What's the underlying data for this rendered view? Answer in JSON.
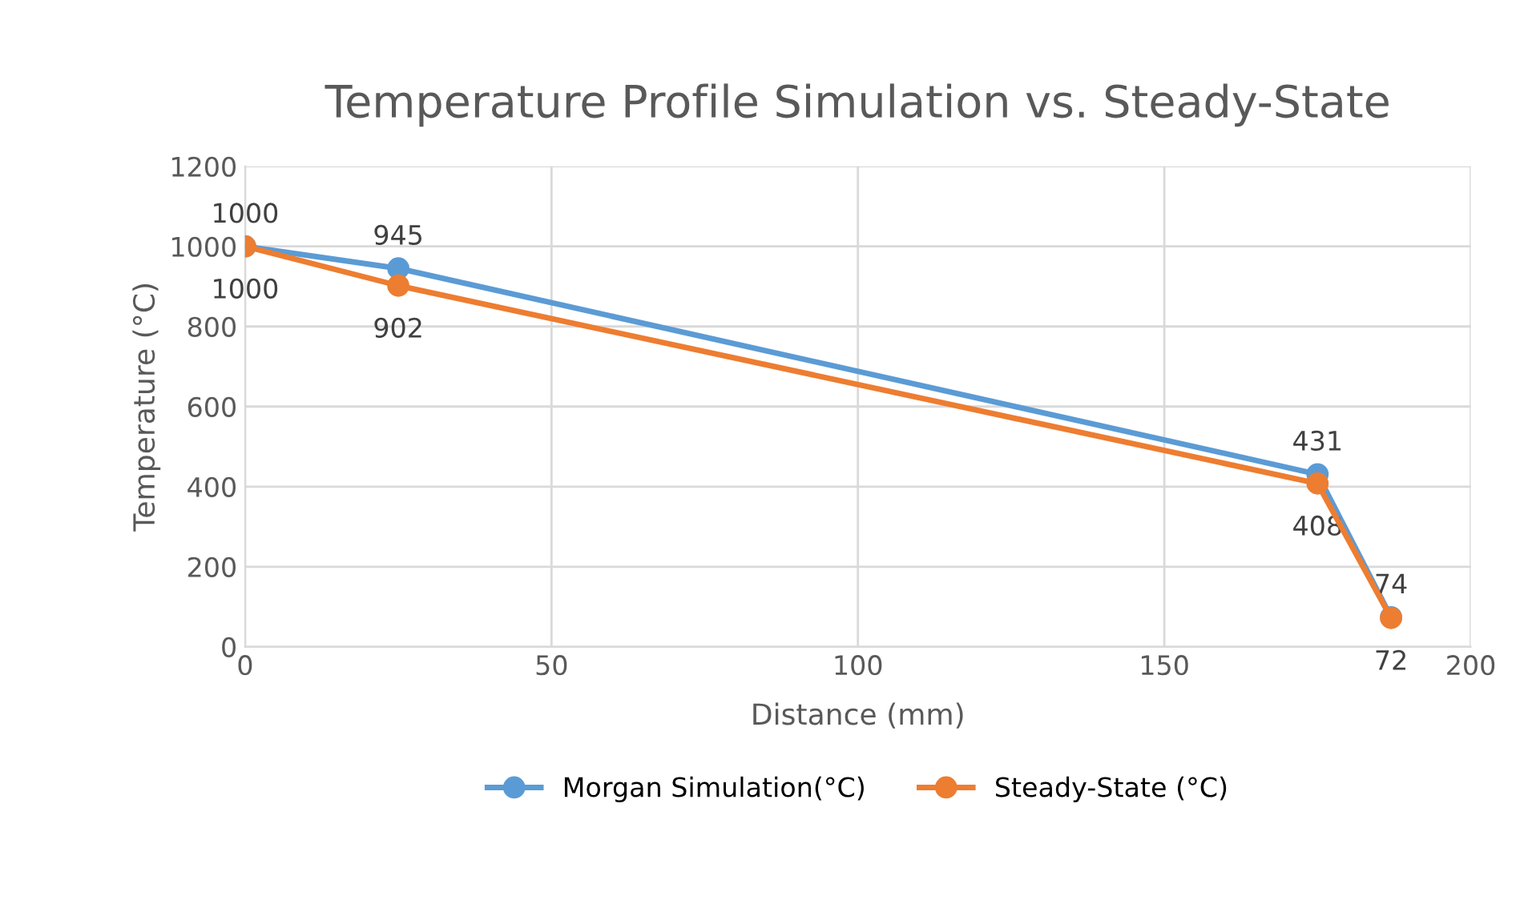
{
  "chart_data": {
    "type": "line",
    "title": "Temperature Profile Simulation vs. Steady-State",
    "xlabel": "Distance (mm)",
    "ylabel": "Temperature (°C)",
    "series": [
      {
        "name": "Morgan Simulation(°C)",
        "color": "#5b9bd5",
        "x": [
          0,
          25,
          175,
          187
        ],
        "values": [
          1000,
          945,
          431,
          74
        ]
      },
      {
        "name": "Steady-State (°C)",
        "color": "#ed7d31",
        "x": [
          0,
          25,
          175,
          187
        ],
        "values": [
          1000,
          902,
          408,
          72
        ]
      }
    ],
    "xlim": [
      0,
      200
    ],
    "xticks": [
      0,
      50,
      100,
      150,
      200
    ],
    "ylim": [
      0,
      1200
    ],
    "yticks": [
      0,
      200,
      400,
      600,
      800,
      1000,
      1200
    ],
    "grid": true,
    "legend": "bottom",
    "marker": "circle",
    "line_style": "solid",
    "data_labels": true
  }
}
